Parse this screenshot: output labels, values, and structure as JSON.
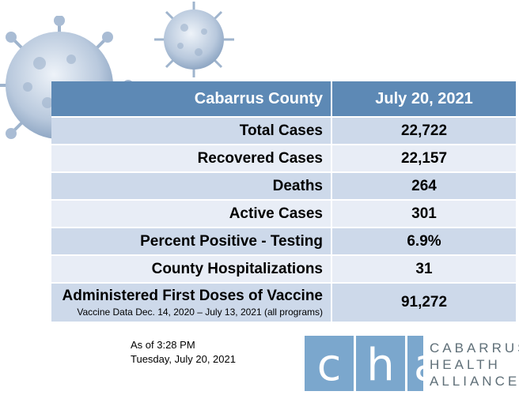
{
  "table": {
    "header": {
      "label": "Cabarrus County",
      "value": "July 20, 2021"
    },
    "rows": [
      {
        "label": "Total Cases",
        "value": "22,722"
      },
      {
        "label": "Recovered Cases",
        "value": "22,157"
      },
      {
        "label": "Deaths",
        "value": "264"
      },
      {
        "label": "Active Cases",
        "value": "301"
      },
      {
        "label": "Percent Positive - Testing",
        "value": "6.9%"
      },
      {
        "label": "County Hospitalizations",
        "value": "31"
      },
      {
        "label": "Administered First Doses of Vaccine",
        "sublabel": "Vaccine Data Dec. 14, 2020 – July 13, 2021 (all programs)",
        "value": "91,272"
      }
    ]
  },
  "timestamp": {
    "line1": "As of 3:28 PM",
    "line2": "Tuesday, July 20, 2021"
  },
  "logo": {
    "letters": [
      "c",
      "h",
      "a"
    ],
    "name_lines": [
      "CABARRUS",
      "HEALTH",
      "ALLIANCE"
    ]
  },
  "colors": {
    "header_bg": "#5d89b5",
    "row_dark": "#cdd9ea",
    "row_light": "#e8edf6",
    "logo_blue": "#7ba7cd",
    "logo_text": "#5f6f78"
  },
  "icons": [
    "virus-icon",
    "virus-icon"
  ]
}
